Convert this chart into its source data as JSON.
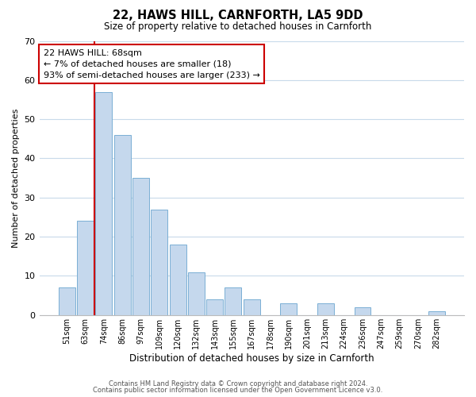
{
  "title": "22, HAWS HILL, CARNFORTH, LA5 9DD",
  "subtitle": "Size of property relative to detached houses in Carnforth",
  "xlabel": "Distribution of detached houses by size in Carnforth",
  "ylabel": "Number of detached properties",
  "categories": [
    "51sqm",
    "63sqm",
    "74sqm",
    "86sqm",
    "97sqm",
    "109sqm",
    "120sqm",
    "132sqm",
    "143sqm",
    "155sqm",
    "167sqm",
    "178sqm",
    "190sqm",
    "201sqm",
    "213sqm",
    "224sqm",
    "236sqm",
    "247sqm",
    "259sqm",
    "270sqm",
    "282sqm"
  ],
  "values": [
    7,
    24,
    57,
    46,
    35,
    27,
    18,
    11,
    4,
    7,
    4,
    0,
    3,
    0,
    3,
    0,
    2,
    0,
    0,
    0,
    1
  ],
  "bar_color": "#c5d8ed",
  "bar_edge_color": "#7aafd4",
  "vline_x": 1.5,
  "vline_color": "#cc0000",
  "annotation_title": "22 HAWS HILL: 68sqm",
  "annotation_line1": "← 7% of detached houses are smaller (18)",
  "annotation_line2": "93% of semi-detached houses are larger (233) →",
  "annotation_box_color": "#ffffff",
  "annotation_box_edge": "#cc0000",
  "ylim": [
    0,
    70
  ],
  "yticks": [
    0,
    10,
    20,
    30,
    40,
    50,
    60,
    70
  ],
  "footer1": "Contains HM Land Registry data © Crown copyright and database right 2024.",
  "footer2": "Contains public sector information licensed under the Open Government Licence v3.0.",
  "bg_color": "#ffffff",
  "grid_color": "#c8daea"
}
